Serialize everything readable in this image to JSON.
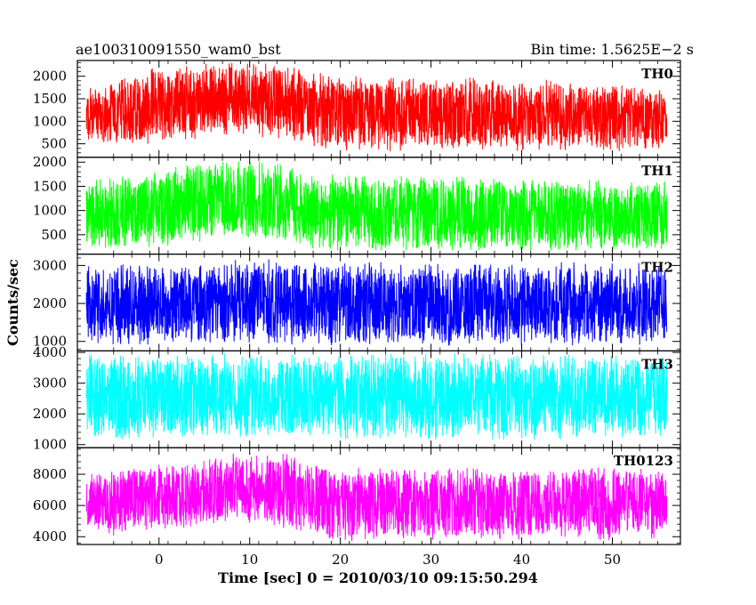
{
  "chart_data": {
    "type": "line",
    "title": "ae100310091550_wam0_bst",
    "subtitle": "Bin time: 1.5625E−2 s",
    "xlabel": "Time [sec] 0 = 2010/03/10 09:15:50.294",
    "ylabel": "Counts/sec",
    "xlim": [
      -9,
      57.5
    ],
    "x_ticks": [
      0,
      10,
      20,
      30,
      40,
      50
    ],
    "x_tick_labels": [
      "0",
      "10",
      "20",
      "30",
      "40",
      "50"
    ],
    "data_x_range": [
      -8,
      56
    ],
    "grid": false,
    "panels": [
      {
        "name": "TH0",
        "color": "#ff0000",
        "ylim": [
          200,
          2350
        ],
        "y_ticks": [
          500,
          1000,
          1500,
          2000
        ],
        "y_tick_labels": [
          "500",
          "1000",
          "1500",
          "2000"
        ],
        "envelope": {
          "x": [
            -8,
            -5,
            0,
            5,
            10,
            14,
            16,
            20,
            30,
            40,
            50,
            56
          ],
          "min": [
            400,
            420,
            480,
            600,
            650,
            560,
            380,
            300,
            330,
            330,
            320,
            360
          ],
          "max": [
            1800,
            1950,
            2250,
            2350,
            2350,
            2350,
            2200,
            2050,
            2000,
            1950,
            1900,
            1750
          ]
        }
      },
      {
        "name": "TH1",
        "color": "#00ff00",
        "ylim": [
          100,
          2100
        ],
        "y_ticks": [
          500,
          1000,
          1500,
          2000
        ],
        "y_tick_labels": [
          "500",
          "1000",
          "1500",
          "2000"
        ],
        "envelope": {
          "x": [
            -8,
            -5,
            0,
            5,
            10,
            14,
            16,
            20,
            30,
            40,
            50,
            56
          ],
          "min": [
            150,
            170,
            230,
            320,
            400,
            300,
            160,
            120,
            140,
            140,
            130,
            150
          ],
          "max": [
            1650,
            1700,
            1850,
            2050,
            2100,
            2050,
            1800,
            1750,
            1750,
            1700,
            1700,
            1600
          ]
        }
      },
      {
        "name": "TH2",
        "color": "#0000ff",
        "ylim": [
          750,
          3300
        ],
        "y_ticks": [
          1000,
          2000,
          3000
        ],
        "y_tick_labels": [
          "1000",
          "2000",
          "3000"
        ],
        "envelope": {
          "x": [
            -8,
            0,
            10,
            20,
            30,
            40,
            50,
            56
          ],
          "min": [
            850,
            880,
            880,
            850,
            860,
            860,
            850,
            880
          ],
          "max": [
            3050,
            3100,
            3200,
            3150,
            3100,
            3100,
            3150,
            3100
          ]
        }
      },
      {
        "name": "TH3",
        "color": "#00ffff",
        "ylim": [
          900,
          4050
        ],
        "y_ticks": [
          1000,
          2000,
          3000,
          4000
        ],
        "y_tick_labels": [
          "1000",
          "2000",
          "3000",
          "4000"
        ],
        "envelope": {
          "x": [
            -8,
            0,
            10,
            20,
            30,
            40,
            50,
            56
          ],
          "min": [
            1100,
            1100,
            1150,
            1100,
            1120,
            1100,
            1100,
            1150
          ],
          "max": [
            4000,
            4000,
            4050,
            4000,
            4000,
            4000,
            4000,
            3950
          ]
        }
      },
      {
        "name": "TH0123",
        "color": "#ff00ff",
        "ylim": [
          3500,
          9700
        ],
        "y_ticks": [
          4000,
          6000,
          8000
        ],
        "y_tick_labels": [
          "4000",
          "6000",
          "8000"
        ],
        "envelope": {
          "x": [
            -8,
            -5,
            0,
            5,
            10,
            14,
            16,
            20,
            30,
            40,
            50,
            56
          ],
          "min": [
            3900,
            4000,
            4300,
            4700,
            4800,
            4500,
            3900,
            3650,
            3700,
            3700,
            3700,
            3800
          ],
          "max": [
            8200,
            8400,
            8900,
            9200,
            9500,
            9400,
            8800,
            8600,
            8500,
            8500,
            8700,
            8300
          ]
        }
      }
    ]
  }
}
